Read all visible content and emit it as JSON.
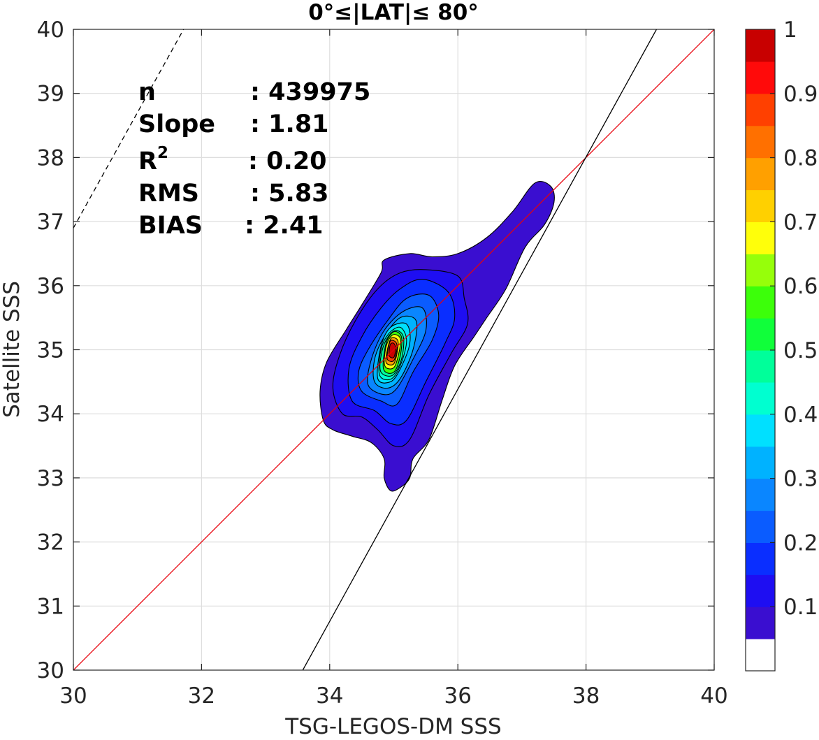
{
  "chart_data": {
    "type": "contour",
    "title": "0°≤|LAT|≤ 80°",
    "xlabel": "TSG-LEGOS-DM SSS",
    "ylabel": "Satellite SSS",
    "xlim": [
      30,
      40
    ],
    "ylim": [
      30,
      40
    ],
    "xticks": [
      30,
      32,
      34,
      36,
      38,
      40
    ],
    "yticks": [
      30,
      31,
      32,
      33,
      34,
      35,
      36,
      37,
      38,
      39,
      40
    ],
    "grid": true,
    "stats": [
      {
        "label": "n",
        "value": ": 439975"
      },
      {
        "label": "Slope",
        "value": ": 1.81"
      },
      {
        "label": "R",
        "sup": "2",
        "value": ": 0.20"
      },
      {
        "label": "RMS",
        "value": ": 5.83"
      },
      {
        "label": "BIAS",
        "value": ": 2.41"
      }
    ],
    "colorbar": {
      "ticks": [
        0.1,
        0.2,
        0.3,
        0.4,
        0.5,
        0.6,
        0.7,
        0.8,
        0.9,
        1
      ],
      "tick_labels": [
        "0.1",
        "0.2",
        "0.3",
        "0.4",
        "0.5",
        "0.6",
        "0.7",
        "0.8",
        "0.9",
        "1"
      ],
      "levels": [
        0,
        0.05,
        0.1,
        0.15,
        0.2,
        0.25,
        0.3,
        0.35,
        0.4,
        0.45,
        0.5,
        0.55,
        0.6,
        0.65,
        0.7,
        0.75,
        0.8,
        0.85,
        0.9,
        0.95,
        1
      ],
      "colors": [
        "#ffffff",
        "#4f04a8",
        "#3a0ed0",
        "#1e0ef2",
        "#0a2eff",
        "#0a5cff",
        "#0a86ff",
        "#00b2ff",
        "#00e0ff",
        "#00ffd0",
        "#00ff9a",
        "#10ff3a",
        "#3cff0a",
        "#96ff0a",
        "#ffff0a",
        "#ffd000",
        "#ffa000",
        "#ff7000",
        "#ff4000",
        "#ff0a0a",
        "#c80000",
        "#8b0000"
      ]
    },
    "lines": [
      {
        "name": "one-to-one",
        "color": "#e8000b",
        "style": "solid",
        "points": [
          [
            30,
            30
          ],
          [
            40,
            40
          ]
        ]
      },
      {
        "name": "fit",
        "color": "#000000",
        "style": "solid",
        "points": [
          [
            33.58,
            30
          ],
          [
            39.1,
            40
          ]
        ]
      },
      {
        "name": "dashed",
        "color": "#000000",
        "style": "dashed",
        "points": [
          [
            30,
            36.9
          ],
          [
            31.72,
            40
          ]
        ]
      }
    ],
    "contours": [
      {
        "level": 0.05,
        "points": [
          [
            34.05,
            33.75
          ],
          [
            34.35,
            33.65
          ],
          [
            34.65,
            33.55
          ],
          [
            34.85,
            33.3
          ],
          [
            34.85,
            33.0
          ],
          [
            34.95,
            32.8
          ],
          [
            35.1,
            32.85
          ],
          [
            35.25,
            33.0
          ],
          [
            35.3,
            33.3
          ],
          [
            35.55,
            33.6
          ],
          [
            35.75,
            34.2
          ],
          [
            35.95,
            34.75
          ],
          [
            36.25,
            35.2
          ],
          [
            36.45,
            35.5
          ],
          [
            36.75,
            35.95
          ],
          [
            37.05,
            36.6
          ],
          [
            37.35,
            36.95
          ],
          [
            37.5,
            37.3
          ],
          [
            37.45,
            37.55
          ],
          [
            37.2,
            37.6
          ],
          [
            36.85,
            37.15
          ],
          [
            36.45,
            36.75
          ],
          [
            36.0,
            36.5
          ],
          [
            35.6,
            36.45
          ],
          [
            35.25,
            36.5
          ],
          [
            34.85,
            36.4
          ],
          [
            34.8,
            36.2
          ],
          [
            34.5,
            35.7
          ],
          [
            34.25,
            35.3
          ],
          [
            33.95,
            34.8
          ],
          [
            33.85,
            34.35
          ],
          [
            33.9,
            33.9
          ]
        ]
      },
      {
        "level": 0.1,
        "points": [
          [
            34.2,
            34.0
          ],
          [
            34.5,
            33.95
          ],
          [
            34.75,
            33.75
          ],
          [
            35.0,
            33.5
          ],
          [
            35.25,
            33.6
          ],
          [
            35.55,
            34.3
          ],
          [
            35.9,
            34.95
          ],
          [
            36.15,
            35.4
          ],
          [
            36.1,
            35.8
          ],
          [
            36.0,
            36.15
          ],
          [
            35.5,
            36.25
          ],
          [
            35.1,
            36.2
          ],
          [
            34.75,
            35.95
          ],
          [
            34.4,
            35.45
          ],
          [
            34.15,
            34.9
          ],
          [
            34.05,
            34.4
          ]
        ]
      },
      {
        "level": 0.15,
        "points": [
          [
            34.35,
            34.2
          ],
          [
            34.7,
            34.05
          ],
          [
            34.95,
            33.85
          ],
          [
            35.2,
            33.9
          ],
          [
            35.5,
            34.5
          ],
          [
            35.8,
            35.1
          ],
          [
            35.95,
            35.5
          ],
          [
            35.85,
            35.9
          ],
          [
            35.45,
            36.1
          ],
          [
            35.1,
            35.95
          ],
          [
            34.8,
            35.65
          ],
          [
            34.5,
            35.2
          ],
          [
            34.3,
            34.7
          ]
        ]
      },
      {
        "level": 0.2,
        "points": [
          [
            34.5,
            34.35
          ],
          [
            34.8,
            34.2
          ],
          [
            35.05,
            34.15
          ],
          [
            35.3,
            34.65
          ],
          [
            35.6,
            35.15
          ],
          [
            35.7,
            35.55
          ],
          [
            35.55,
            35.85
          ],
          [
            35.2,
            35.8
          ],
          [
            34.9,
            35.45
          ],
          [
            34.6,
            35.0
          ],
          [
            34.45,
            34.65
          ]
        ]
      },
      {
        "level": 0.25,
        "points": [
          [
            34.6,
            34.45
          ],
          [
            34.85,
            34.3
          ],
          [
            35.05,
            34.4
          ],
          [
            35.3,
            34.85
          ],
          [
            35.5,
            35.3
          ],
          [
            35.45,
            35.65
          ],
          [
            35.15,
            35.6
          ],
          [
            34.85,
            35.3
          ],
          [
            34.65,
            34.85
          ]
        ]
      },
      {
        "level": 0.3,
        "points": [
          [
            34.7,
            34.5
          ],
          [
            34.9,
            34.4
          ],
          [
            35.1,
            34.55
          ],
          [
            35.3,
            35.0
          ],
          [
            35.35,
            35.45
          ],
          [
            35.1,
            35.5
          ],
          [
            34.85,
            35.2
          ],
          [
            34.7,
            34.85
          ]
        ]
      },
      {
        "level": 0.35,
        "points": [
          [
            34.75,
            34.55
          ],
          [
            34.95,
            34.5
          ],
          [
            35.1,
            34.7
          ],
          [
            35.25,
            35.1
          ],
          [
            35.2,
            35.4
          ],
          [
            34.95,
            35.35
          ],
          [
            34.8,
            35.05
          ]
        ]
      },
      {
        "level": 0.4,
        "points": [
          [
            34.78,
            34.6
          ],
          [
            34.97,
            34.55
          ],
          [
            35.12,
            34.8
          ],
          [
            35.2,
            35.15
          ],
          [
            35.1,
            35.35
          ],
          [
            34.92,
            35.25
          ],
          [
            34.8,
            35.0
          ]
        ]
      },
      {
        "level": 0.45,
        "points": [
          [
            34.8,
            34.65
          ],
          [
            34.98,
            34.6
          ],
          [
            35.12,
            34.85
          ],
          [
            35.15,
            35.2
          ],
          [
            35.02,
            35.3
          ],
          [
            34.88,
            35.15
          ],
          [
            34.8,
            34.9
          ]
        ]
      },
      {
        "level": 0.55,
        "points": [
          [
            34.84,
            34.7
          ],
          [
            35.0,
            34.65
          ],
          [
            35.1,
            34.9
          ],
          [
            35.12,
            35.2
          ],
          [
            35.0,
            35.28
          ],
          [
            34.88,
            35.1
          ]
        ]
      },
      {
        "level": 0.65,
        "points": [
          [
            34.86,
            34.75
          ],
          [
            35.0,
            34.72
          ],
          [
            35.08,
            34.95
          ],
          [
            35.1,
            35.18
          ],
          [
            34.98,
            35.23
          ],
          [
            34.88,
            35.05
          ]
        ]
      },
      {
        "level": 0.75,
        "points": [
          [
            34.88,
            34.8
          ],
          [
            35.0,
            34.78
          ],
          [
            35.06,
            35.0
          ],
          [
            35.06,
            35.15
          ],
          [
            34.96,
            35.18
          ],
          [
            34.9,
            35.0
          ]
        ]
      },
      {
        "level": 0.85,
        "points": [
          [
            34.9,
            34.85
          ],
          [
            35.0,
            34.83
          ],
          [
            35.05,
            35.02
          ],
          [
            35.03,
            35.12
          ],
          [
            34.95,
            35.14
          ],
          [
            34.91,
            35.0
          ]
        ]
      },
      {
        "level": 0.95,
        "points": [
          [
            34.93,
            34.9
          ],
          [
            35.0,
            34.88
          ],
          [
            35.03,
            35.02
          ],
          [
            35.0,
            35.1
          ],
          [
            34.95,
            35.09
          ],
          [
            34.93,
            35.0
          ]
        ]
      }
    ]
  }
}
